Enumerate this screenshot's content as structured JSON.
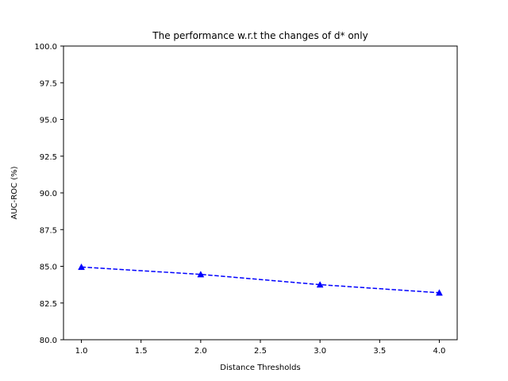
{
  "chart_data": {
    "type": "line",
    "title": "The performance w.r.t the changes of d* only",
    "xlabel": "Distance Thresholds",
    "ylabel": "AUC-ROC (%)",
    "xlim": [
      0.85,
      4.15
    ],
    "ylim": [
      80.0,
      100.0
    ],
    "xticks": [
      "1.0",
      "1.5",
      "2.0",
      "2.5",
      "3.0",
      "3.5",
      "4.0"
    ],
    "yticks": [
      "80.0",
      "82.5",
      "85.0",
      "87.5",
      "90.0",
      "92.5",
      "95.0",
      "97.5",
      "100.0"
    ],
    "grid": false,
    "series": [
      {
        "color": "#0000ff",
        "line_style": "dashed",
        "marker": "triangle-up",
        "x": [
          1.0,
          2.0,
          3.0,
          4.0
        ],
        "values": [
          84.95,
          84.45,
          83.75,
          83.2
        ]
      }
    ]
  }
}
